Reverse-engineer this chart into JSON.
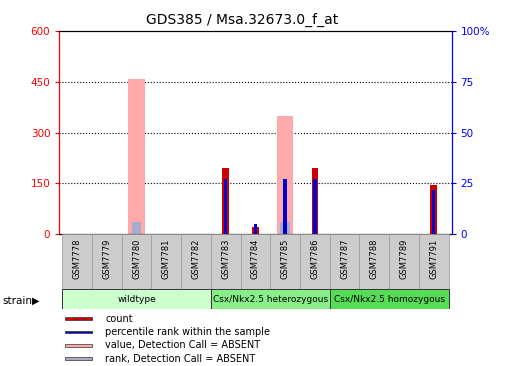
{
  "title": "GDS385 / Msa.32673.0_f_at",
  "samples": [
    "GSM7778",
    "GSM7779",
    "GSM7780",
    "GSM7781",
    "GSM7782",
    "GSM7783",
    "GSM7784",
    "GSM7785",
    "GSM7786",
    "GSM7787",
    "GSM7788",
    "GSM7789",
    "GSM7791"
  ],
  "count_values": [
    0,
    0,
    0,
    0,
    0,
    195,
    20,
    0,
    195,
    0,
    0,
    0,
    145
  ],
  "percentile_values": [
    0,
    0,
    0,
    0,
    0,
    27,
    5,
    27,
    27,
    0,
    0,
    0,
    22
  ],
  "absent_value_values": [
    0,
    0,
    460,
    0,
    0,
    0,
    0,
    350,
    0,
    0,
    0,
    0,
    0
  ],
  "absent_rank_values": [
    0,
    0,
    35,
    0,
    0,
    0,
    0,
    35,
    0,
    0,
    0,
    0,
    0
  ],
  "count_color": "#cc0000",
  "percentile_color": "#0000cc",
  "absent_value_color": "#ffaaaa",
  "absent_rank_color": "#aaaacc",
  "ylim_left": [
    0,
    600
  ],
  "ylim_right": [
    0,
    100
  ],
  "yticks_left": [
    0,
    150,
    300,
    450,
    600
  ],
  "yticks_right": [
    0,
    25,
    50,
    75,
    100
  ],
  "background_color": "#ffffff",
  "group_defs": [
    [
      0,
      4,
      "wildtype",
      "#ccffcc"
    ],
    [
      5,
      8,
      "Csx/Nkx2.5 heterozygous",
      "#88ee88"
    ],
    [
      9,
      12,
      "Csx/Nkx2.5 homozygous",
      "#55dd55"
    ]
  ]
}
